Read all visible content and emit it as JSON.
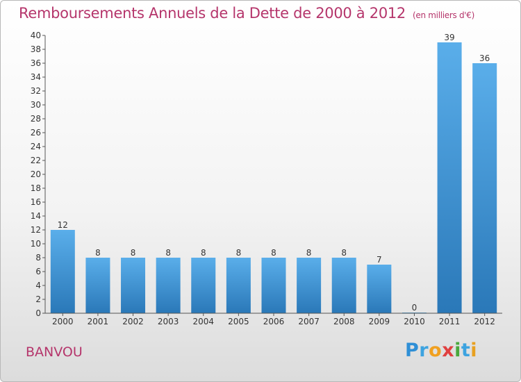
{
  "title": "Remboursements Annuels de la Dette de 2000 à 2012",
  "subtitle": "(en milliers d'€)",
  "commune": "BANVOU",
  "logo": {
    "text": "Proxiti",
    "letters": [
      {
        "ch": "P",
        "color": "#2f8fd6"
      },
      {
        "ch": "r",
        "color": "#3da3e0"
      },
      {
        "ch": "o",
        "color": "#f0a020"
      },
      {
        "ch": "x",
        "color": "#e04040"
      },
      {
        "ch": "i",
        "color": "#4aa83c"
      },
      {
        "ch": "t",
        "color": "#3da3e0"
      },
      {
        "ch": "i",
        "color": "#e8a020"
      }
    ]
  },
  "colors": {
    "title": "#b5356b",
    "bar_top": "#5aaeea",
    "bar_bottom": "#2a78b8",
    "axis": "#555555"
  },
  "chart_data": {
    "type": "bar",
    "categories": [
      "2000",
      "2001",
      "2002",
      "2003",
      "2004",
      "2005",
      "2006",
      "2007",
      "2008",
      "2009",
      "2010",
      "2011",
      "2012"
    ],
    "values": [
      12,
      8,
      8,
      8,
      8,
      8,
      8,
      8,
      8,
      7,
      0,
      39,
      36
    ],
    "ylim": [
      0,
      40
    ],
    "yticks": [
      0,
      2,
      4,
      6,
      8,
      10,
      12,
      14,
      16,
      18,
      20,
      22,
      24,
      26,
      28,
      30,
      32,
      34,
      36,
      38,
      40
    ],
    "grid": false,
    "legend": "none"
  }
}
